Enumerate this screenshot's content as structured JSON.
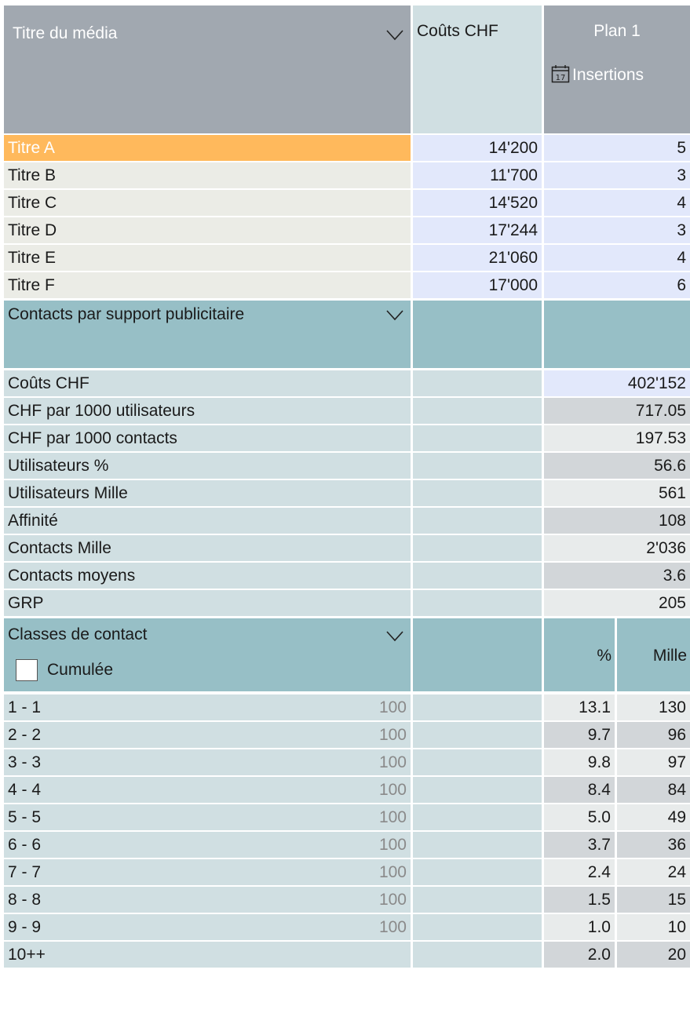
{
  "header": {
    "media_title_label": "Titre du média",
    "cost_label": "Coûts CHF",
    "plan_label": "Plan 1",
    "insertions_label": "Insertions"
  },
  "titles": [
    {
      "name": "Titre A",
      "cost": "14'200",
      "insertions": "5",
      "selected": true
    },
    {
      "name": "Titre B",
      "cost": "11'700",
      "insertions": "3"
    },
    {
      "name": "Titre C",
      "cost": "14'520",
      "insertions": "4"
    },
    {
      "name": "Titre D",
      "cost": "17'244",
      "insertions": "3"
    },
    {
      "name": "Titre E",
      "cost": "21'060",
      "insertions": "4"
    },
    {
      "name": "Titre F",
      "cost": "17'000",
      "insertions": "6"
    }
  ],
  "contacts_section": {
    "label": "Contacts par support publicitaire",
    "rows": [
      {
        "label": "Coûts CHF",
        "value": "402'152"
      },
      {
        "label": "CHF par 1000 utilisateurs",
        "value": "717.05"
      },
      {
        "label": "CHF par 1000 contacts",
        "value": "197.53"
      },
      {
        "label": "Utilisateurs %",
        "value": "56.6"
      },
      {
        "label": "Utilisateurs Mille",
        "value": "561"
      },
      {
        "label": "Affinité",
        "value": "108"
      },
      {
        "label": "Contacts Mille",
        "value": "2'036"
      },
      {
        "label": "Contacts moyens",
        "value": "3.6"
      },
      {
        "label": "GRP",
        "value": "205"
      }
    ]
  },
  "classes_section": {
    "label": "Classes de contact",
    "cumulative_label": "Cumulée",
    "cumulative_checked": false,
    "pct_header": "%",
    "mille_header": "Mille",
    "rows": [
      {
        "label": "1 - 1",
        "ref": "100",
        "pct": "13.1",
        "mille": "130"
      },
      {
        "label": "2 - 2",
        "ref": "100",
        "pct": "9.7",
        "mille": "96"
      },
      {
        "label": "3 - 3",
        "ref": "100",
        "pct": "9.8",
        "mille": "97"
      },
      {
        "label": "4 - 4",
        "ref": "100",
        "pct": "8.4",
        "mille": "84"
      },
      {
        "label": "5 - 5",
        "ref": "100",
        "pct": "5.0",
        "mille": "49"
      },
      {
        "label": "6 - 6",
        "ref": "100",
        "pct": "3.7",
        "mille": "36"
      },
      {
        "label": "7 - 7",
        "ref": "100",
        "pct": "2.4",
        "mille": "24"
      },
      {
        "label": "8 - 8",
        "ref": "100",
        "pct": "1.5",
        "mille": "15"
      },
      {
        "label": "9 - 9",
        "ref": "100",
        "pct": "1.0",
        "mille": "10"
      },
      {
        "label": "10++",
        "ref": "",
        "pct": "2.0",
        "mille": "20"
      }
    ]
  },
  "colors": {
    "header_gray": "#a1a8b0",
    "cost_header": "#d0dfe2",
    "selected_row": "#ffb95c",
    "title_row": "#ebece6",
    "blue_cell": "#e2e8fb",
    "teal_header": "#97bfc6",
    "light_teal": "#d0dfe2",
    "alt_gray": "#d2d6d9",
    "alt_light": "#e8ebeb"
  }
}
